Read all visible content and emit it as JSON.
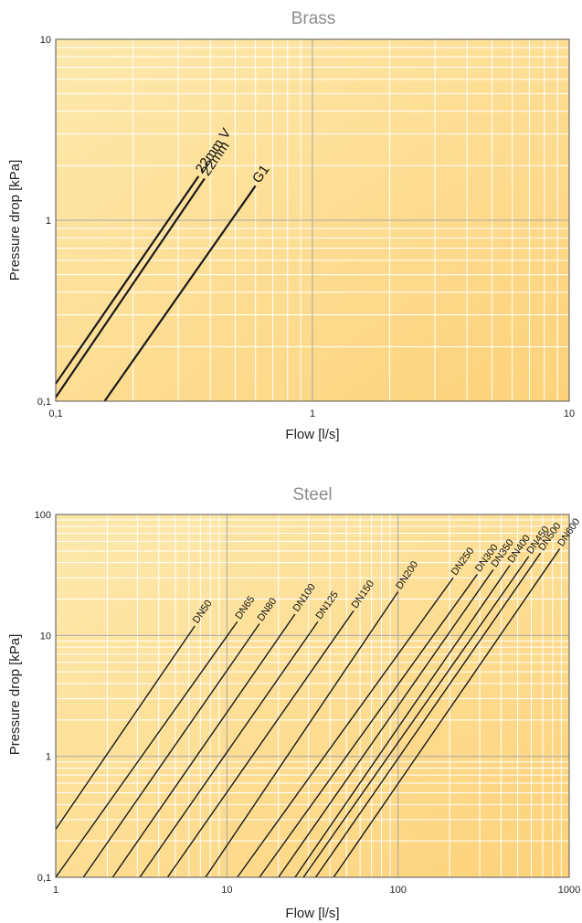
{
  "colors": {
    "plot_bg_light": "#fde9ad",
    "plot_bg_dark": "#fdd27a",
    "grid_minor": "#ffffff",
    "grid_major": "#a8a8a8",
    "line": "#1a1a1a",
    "title": "#8c8c8c"
  },
  "chart_data": [
    {
      "type": "line",
      "title": "Brass",
      "xlabel": "Flow [l/s]",
      "ylabel": "Pressure drop [kPa]",
      "xscale": "log",
      "yscale": "log",
      "xlim": [
        0.1,
        10
      ],
      "ylim": [
        0.1,
        10
      ],
      "xticks": [
        {
          "v": 0.1,
          "label": "0,1"
        },
        {
          "v": 1,
          "label": "1"
        },
        {
          "v": 10,
          "label": "10"
        }
      ],
      "yticks": [
        {
          "v": 0.1,
          "label": "0,1"
        },
        {
          "v": 1,
          "label": "1"
        },
        {
          "v": 10,
          "label": "10"
        }
      ],
      "grid": true,
      "series": [
        {
          "name": "22mm V",
          "x": [
            0.1,
            0.36
          ],
          "y": [
            0.125,
            1.75
          ]
        },
        {
          "name": "22mm",
          "x": [
            0.1,
            0.38
          ],
          "y": [
            0.105,
            1.7
          ]
        },
        {
          "name": "G1",
          "x": [
            0.155,
            0.6
          ],
          "y": [
            0.1,
            1.55
          ]
        }
      ]
    },
    {
      "type": "line",
      "title": "Steel",
      "xlabel": "Flow [l/s]",
      "ylabel": "Pressure drop [kPa]",
      "xscale": "log",
      "yscale": "log",
      "xlim": [
        1,
        1000
      ],
      "ylim": [
        0.1,
        100
      ],
      "xticks": [
        {
          "v": 1,
          "label": "1"
        },
        {
          "v": 10,
          "label": "10"
        },
        {
          "v": 100,
          "label": "100"
        },
        {
          "v": 1000,
          "label": "1000"
        }
      ],
      "yticks": [
        {
          "v": 0.1,
          "label": "0,1"
        },
        {
          "v": 1,
          "label": "1"
        },
        {
          "v": 10,
          "label": "10"
        },
        {
          "v": 100,
          "label": "100"
        }
      ],
      "grid": true,
      "series": [
        {
          "name": "DN50",
          "x": [
            1,
            6.5
          ],
          "y": [
            0.25,
            12
          ]
        },
        {
          "name": "DN65",
          "x": [
            1,
            11.5
          ],
          "y": [
            0.1,
            13
          ]
        },
        {
          "name": "DN80",
          "x": [
            1.45,
            15.5
          ],
          "y": [
            0.1,
            12.5
          ]
        },
        {
          "name": "DN100",
          "x": [
            2.15,
            25
          ],
          "y": [
            0.1,
            15
          ]
        },
        {
          "name": "DN125",
          "x": [
            3.1,
            34
          ],
          "y": [
            0.1,
            13
          ]
        },
        {
          "name": "DN150",
          "x": [
            4.5,
            55
          ],
          "y": [
            0.1,
            16
          ]
        },
        {
          "name": "DN200",
          "x": [
            7.5,
            100
          ],
          "y": [
            0.1,
            23
          ]
        },
        {
          "name": "DN250",
          "x": [
            11.5,
            210
          ],
          "y": [
            0.1,
            30
          ]
        },
        {
          "name": "DN300",
          "x": [
            15.5,
            290
          ],
          "y": [
            0.1,
            32
          ]
        },
        {
          "name": "DN350",
          "x": [
            20,
            360
          ],
          "y": [
            0.1,
            35
          ]
        },
        {
          "name": "DN400",
          "x": [
            25,
            450
          ],
          "y": [
            0.1,
            38
          ]
        },
        {
          "name": "DN450",
          "x": [
            28,
            580
          ],
          "y": [
            0.1,
            45
          ]
        },
        {
          "name": "DN500",
          "x": [
            33,
            680
          ],
          "y": [
            0.1,
            48
          ]
        },
        {
          "name": "DN600",
          "x": [
            42,
            880
          ],
          "y": [
            0.1,
            52
          ]
        }
      ]
    }
  ]
}
